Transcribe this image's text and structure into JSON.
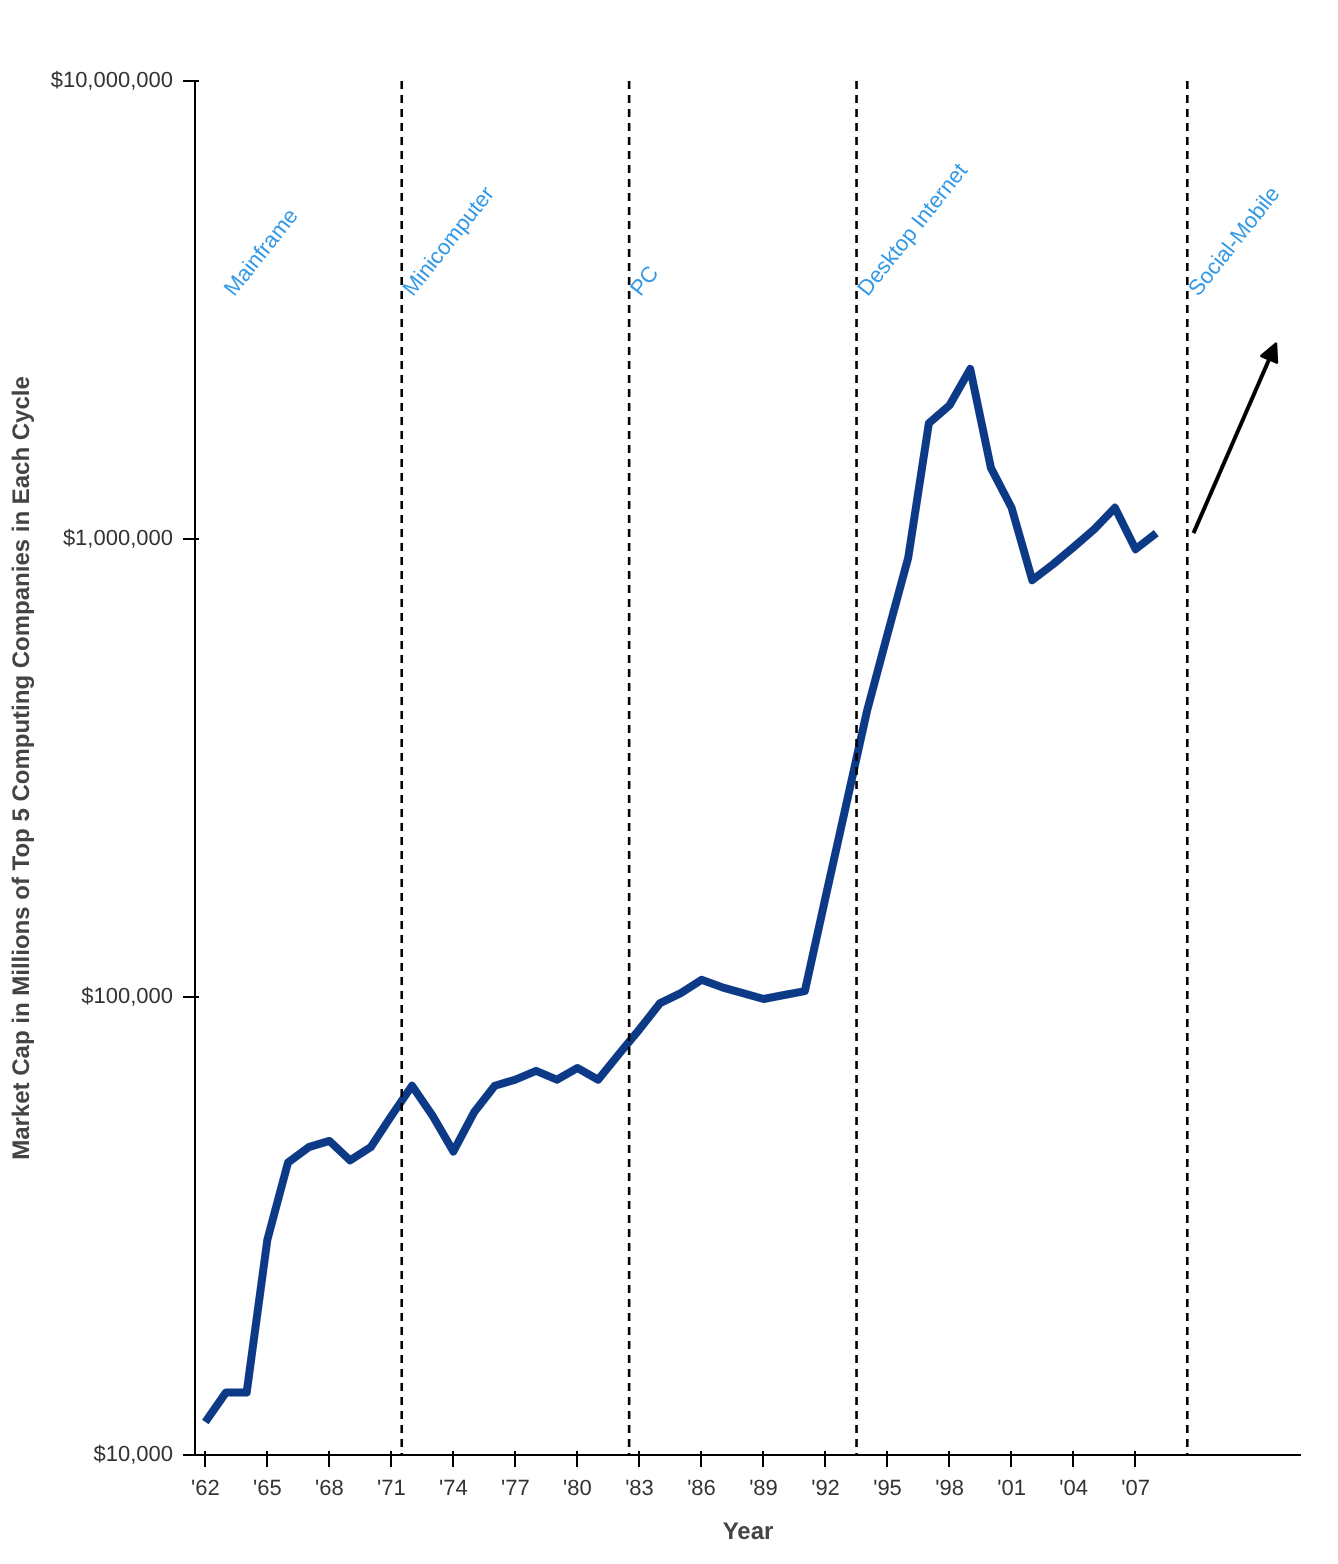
{
  "chart_data": {
    "type": "line",
    "xlabel": "Year",
    "ylabel": "Market Cap in Millions of Top 5 Computing Companies in Each Cycle",
    "x": [
      1962,
      1963,
      1964,
      1965,
      1966,
      1967,
      1968,
      1969,
      1970,
      1971,
      1972,
      1973,
      1974,
      1975,
      1976,
      1977,
      1978,
      1979,
      1980,
      1981,
      1982,
      1983,
      1984,
      1985,
      1986,
      1987,
      1988,
      1989,
      1990,
      1991,
      1992,
      1993,
      1994,
      1995,
      1996,
      1997,
      1998,
      1999,
      2000,
      2001,
      2002,
      2003,
      2004,
      2005,
      2006,
      2007,
      2008
    ],
    "series": [
      {
        "color": "#0d3a87",
        "values": [
          11800,
          13700,
          13700,
          29500,
          43500,
          47000,
          48500,
          44000,
          47000,
          55000,
          64000,
          55000,
          46000,
          56000,
          64000,
          66000,
          69000,
          66000,
          70000,
          66000,
          75000,
          85000,
          97000,
          102000,
          109000,
          105000,
          102000,
          99000,
          101000,
          103000,
          165000,
          263000,
          420000,
          620000,
          910000,
          1790000,
          1960000,
          2350000,
          1430000,
          1170000,
          813000,
          880000,
          960000,
          1050000,
          1170000,
          950000,
          1030000
        ]
      }
    ],
    "log": "y",
    "xlim": [
      1961.5,
      2015
    ],
    "ylim": [
      10000,
      10000000
    ],
    "yticks": [
      {
        "value": 10000,
        "label": "$10,000"
      },
      {
        "value": 100000,
        "label": "$100,000"
      },
      {
        "value": 1000000,
        "label": "$1,000,000"
      },
      {
        "value": 10000000,
        "label": "$10,000,000"
      }
    ],
    "xticks": [
      {
        "value": 1962,
        "label": "'62"
      },
      {
        "value": 1965,
        "label": "'65"
      },
      {
        "value": 1968,
        "label": "'68"
      },
      {
        "value": 1971,
        "label": "'71"
      },
      {
        "value": 1974,
        "label": "'74"
      },
      {
        "value": 1977,
        "label": "'77"
      },
      {
        "value": 1980,
        "label": "'80"
      },
      {
        "value": 1983,
        "label": "'83"
      },
      {
        "value": 1986,
        "label": "'86"
      },
      {
        "value": 1989,
        "label": "'89"
      },
      {
        "value": 1992,
        "label": "'92"
      },
      {
        "value": 1995,
        "label": "'95"
      },
      {
        "value": 1998,
        "label": "'98"
      },
      {
        "value": 2001,
        "label": "'01"
      },
      {
        "value": 2004,
        "label": "'04"
      },
      {
        "value": 2007,
        "label": "'07"
      }
    ],
    "ref_lines": [
      {
        "axis": "x",
        "value": 1971.5,
        "label": "Minicomputer",
        "line_style": "dashed",
        "color": "#000000"
      },
      {
        "axis": "x",
        "value": 1982.5,
        "label": "PC",
        "line_style": "dashed",
        "color": "#000000"
      },
      {
        "axis": "x",
        "value": 1993.5,
        "label": "Desktop Internet",
        "line_style": "dashed",
        "color": "#000000"
      },
      {
        "axis": "x",
        "value": 2009.5,
        "label": "Social-Mobile",
        "line_style": "dashed",
        "color": "#000000"
      }
    ],
    "annotations": [
      "Mainframe"
    ],
    "grid": false,
    "line_style": "solid",
    "marker": "none"
  }
}
